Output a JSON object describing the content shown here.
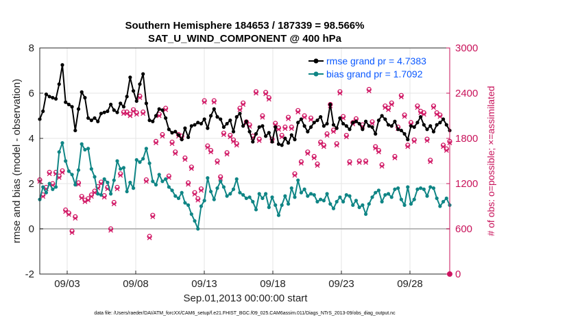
{
  "chart_data": {
    "type": "line",
    "title_line1": "Southern Hemisphere 184653 / 187339 = 98.566%",
    "title_line2": "SAT_U_WIND_COMPONENT @ 400 hPa",
    "xlabel": "Sep.01,2013 00:00:00 start",
    "ylabel_left": "rmse and bias (model - observation)",
    "ylabel_right": "# of obs: o=possible; ×=assimilated",
    "footer": "data file: /Users/raeder/DAI/ATM_forcXX/CAM6_setup/f.e21.FHIST_BGC.f09_025.CAM6assim.011/Diags_NTrS_2013-09/obs_diag_output.nc",
    "x_tick_labels": [
      "09/03",
      "09/08",
      "09/13",
      "09/18",
      "09/23",
      "09/28"
    ],
    "x_tick_days": [
      3,
      8,
      13,
      18,
      23,
      28
    ],
    "xlim_days": [
      1.0,
      30.9
    ],
    "y_left_ticks": [
      "-2",
      "0",
      "2",
      "4",
      "6",
      "8"
    ],
    "y_left_range": [
      -2,
      8
    ],
    "y_right_ticks": [
      "0",
      "600",
      "1200",
      "1800",
      "2400",
      "3000"
    ],
    "y_right_range": [
      0,
      3000
    ],
    "grid": true,
    "legend_position": "top-right",
    "colors": {
      "rmse": "#000000",
      "bias": "#0f8585",
      "obs": "#d01563",
      "zero_line": "#b9b9b9",
      "legend_text": "#0a58ff",
      "axis": "#262626"
    },
    "series": [
      {
        "name": "rmse grand pr = 4.7383",
        "values": [
          4.85,
          5.2,
          5.95,
          5.85,
          5.8,
          5.75,
          6.4,
          7.25,
          5.6,
          5.5,
          5.4,
          4.35,
          5.3,
          6.05,
          5.8,
          4.9,
          4.8,
          4.9,
          4.75,
          5.1,
          5.15,
          5.2,
          5.5,
          5.25,
          5.15,
          5.55,
          5.4,
          5.85,
          6.7,
          6.1,
          5.65,
          6.4,
          6.85,
          5.55,
          4.8,
          4.75,
          5.0,
          5.3,
          5.25,
          4.9,
          4.4,
          4.25,
          4.3,
          4.15,
          3.95,
          4.45,
          4.05,
          4.55,
          4.6,
          4.7,
          4.65,
          4.85,
          4.45,
          5.0,
          5.3,
          4.95,
          4.85,
          4.5,
          4.65,
          4.8,
          4.3,
          4.95,
          5.1,
          4.55,
          4.75,
          4.3,
          3.85,
          4.2,
          4.5,
          4.55,
          4.1,
          4.25,
          3.85,
          4.5,
          3.75,
          3.7,
          4.0,
          3.8,
          4.15,
          3.95,
          4.7,
          4.85,
          4.55,
          4.3,
          4.5,
          4.7,
          4.8,
          4.95,
          4.55,
          4.65,
          5.5,
          4.6,
          4.45,
          4.9,
          4.65,
          4.55,
          4.4,
          4.7,
          4.75,
          4.65,
          4.4,
          4.75,
          4.55,
          4.5,
          4.2,
          4.8,
          5.0,
          4.85,
          4.6,
          4.55,
          4.75,
          4.4,
          4.35,
          4.2,
          3.95,
          4.55,
          4.5,
          4.7,
          4.95,
          4.6,
          4.4,
          4.55,
          4.3,
          4.6,
          4.7,
          4.85,
          4.6,
          4.35
        ]
      },
      {
        "name": "bias grand pr = 1.7092",
        "values": [
          1.3,
          1.85,
          1.6,
          2.0,
          1.75,
          1.85,
          3.4,
          3.8,
          3.0,
          2.55,
          2.4,
          1.95,
          2.6,
          3.75,
          3.5,
          3.55,
          2.65,
          2.3,
          1.55,
          1.5,
          2.2,
          2.05,
          1.55,
          2.15,
          3.0,
          2.65,
          2.7,
          1.65,
          2.05,
          1.8,
          3.05,
          2.95,
          3.1,
          3.55,
          2.9,
          2.1,
          1.95,
          2.4,
          2.1,
          2.2,
          1.85,
          1.7,
          1.45,
          1.35,
          1.6,
          1.15,
          1.05,
          0.65,
          0.35,
          0.0,
          1.0,
          1.25,
          2.25,
          1.65,
          1.3,
          1.8,
          2.1,
          1.85,
          1.45,
          1.55,
          1.75,
          2.2,
          1.6,
          1.5,
          1.35,
          1.4,
          1.2,
          0.85,
          1.55,
          1.35,
          1.55,
          0.95,
          1.4,
          1.05,
          0.6,
          1.05,
          1.45,
          1.1,
          1.8,
          1.4,
          2.15,
          1.6,
          1.75,
          1.45,
          1.55,
          1.5,
          1.2,
          1.3,
          1.25,
          1.55,
          1.1,
          0.9,
          1.2,
          1.4,
          1.2,
          1.5,
          1.45,
          1.05,
          1.25,
          0.95,
          1.05,
          0.65,
          1.1,
          1.4,
          1.6,
          1.7,
          1.2,
          1.5,
          1.55,
          1.4,
          1.75,
          1.8,
          1.3,
          1.05,
          1.85,
          1.1,
          1.3,
          1.75,
          1.8,
          1.75,
          1.45,
          1.85,
          1.8,
          1.35,
          1.0,
          1.2,
          1.35,
          1.05
        ]
      },
      {
        "name": "obs possible",
        "values": [
          1250,
          1050,
          1150,
          1350,
          1200,
          1350,
          1300,
          1370,
          850,
          810,
          570,
          760,
          1210,
          1030,
          980,
          1000,
          1050,
          1100,
          1160,
          1220,
          1040,
          1150,
          600,
          950,
          1150,
          1330,
          2150,
          2150,
          2120,
          2180,
          2140,
          2360,
          2150,
          1250,
          500,
          780,
          1760,
          2120,
          1850,
          2200,
          1300,
          1750,
          1620,
          1850,
          1830,
          1540,
          1210,
          1420,
          1080,
          1000,
          1130,
          2300,
          1700,
          1640,
          2300,
          1500,
          1290,
          1870,
          1610,
          1840,
          1780,
          1730,
          2200,
          2270,
          2020,
          1980,
          1830,
          2420,
          1790,
          2100,
          2410,
          2340,
          1790,
          2000,
          1940,
          1840,
          1950,
          2080,
          1950,
          1330,
          2170,
          1490,
          2100,
          1620,
          2070,
          1560,
          1460,
          1750,
          1710,
          1860,
          2250,
          1910,
          1730,
          2420,
          2090,
          1840,
          1490,
          2010,
          2060,
          1500,
          1980,
          1500,
          2450,
          2020,
          1690,
          1640,
          1450,
          2230,
          2200,
          2270,
          1560,
          1950,
          2370,
          2110,
          1710,
          2010,
          1780,
          2230,
          2160,
          2140,
          1790,
          1510,
          2230,
          2140,
          2110,
          1710,
          1660,
          1760,
          1760,
          1830
        ]
      },
      {
        "name": "obs assimilated",
        "values": [
          1230,
          1030,
          1130,
          1330,
          1180,
          1330,
          1280,
          1350,
          830,
          790,
          550,
          740,
          1190,
          1010,
          960,
          980,
          1030,
          1080,
          1140,
          1200,
          1020,
          1130,
          580,
          930,
          1130,
          1310,
          2130,
          2130,
          2100,
          2160,
          2120,
          2340,
          2130,
          1230,
          480,
          760,
          1740,
          2100,
          1830,
          2180,
          1280,
          1730,
          1600,
          1830,
          1810,
          1520,
          1190,
          1400,
          1060,
          980,
          1110,
          2280,
          1680,
          1620,
          2280,
          1480,
          1270,
          1850,
          1590,
          1820,
          1760,
          1710,
          2180,
          2250,
          2000,
          1960,
          1810,
          2400,
          1770,
          2080,
          2390,
          2320,
          1770,
          1980,
          1920,
          1820,
          1930,
          2060,
          1930,
          1310,
          2150,
          1470,
          2080,
          1600,
          2050,
          1540,
          1440,
          1730,
          1690,
          1840,
          2230,
          1890,
          1710,
          2400,
          2070,
          1820,
          1470,
          1990,
          2040,
          1480,
          1960,
          1480,
          2430,
          2000,
          1670,
          1620,
          1430,
          2210,
          2180,
          2250,
          1540,
          1930,
          2350,
          2090,
          1690,
          1990,
          1760,
          2210,
          2140,
          2120,
          1770,
          1490,
          2210,
          2120,
          2090,
          1690,
          1640,
          1740,
          1740,
          1810
        ]
      }
    ]
  }
}
